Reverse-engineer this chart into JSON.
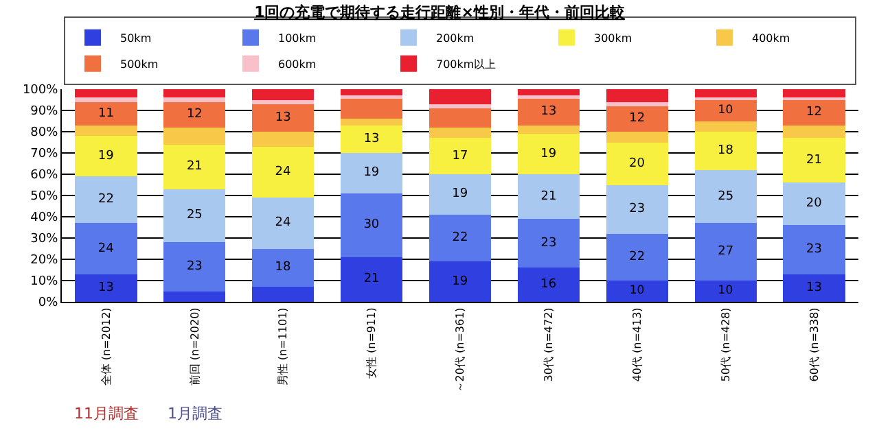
{
  "chart_data": {
    "type": "bar",
    "stacked": true,
    "title": "1回の充電で期待する走行距離×性別・年代・前回比較",
    "categories": [
      "全体 (n=2012)",
      "前回 (n=2020)",
      "男性 (n=1101)",
      "女性 (n=911)",
      "～20代 (n=361)",
      "30代 (n=472)",
      "40代 (n=413)",
      "50代 (n=428)",
      "60代 (n=338)"
    ],
    "series": [
      {
        "name": "50km",
        "color": "#3040e0",
        "values": [
          13,
          5,
          7,
          21,
          19,
          16,
          10,
          10,
          13
        ],
        "value_labels": [
          "13",
          null,
          null,
          "21",
          "19",
          "16",
          "10",
          "10",
          "13"
        ]
      },
      {
        "name": "100km",
        "color": "#5878ec",
        "values": [
          24,
          23,
          18,
          30,
          22,
          23,
          22,
          27,
          23
        ],
        "value_labels": [
          "24",
          "23",
          "18",
          "30",
          "22",
          "23",
          "22",
          "27",
          "23"
        ]
      },
      {
        "name": "200km",
        "color": "#a8c8f0",
        "values": [
          22,
          25,
          24,
          19,
          19,
          21,
          23,
          25,
          20
        ],
        "value_labels": [
          "22",
          "25",
          "24",
          "19",
          "19",
          "21",
          "23",
          "25",
          "20"
        ]
      },
      {
        "name": "300km",
        "color": "#f8f040",
        "values": [
          19,
          21,
          24,
          13,
          17,
          19,
          20,
          18,
          21
        ],
        "value_labels": [
          "19",
          "21",
          "24",
          "13",
          "17",
          "19",
          "20",
          "18",
          "21"
        ]
      },
      {
        "name": "400km",
        "color": "#f8c848",
        "values": [
          5,
          8,
          7,
          3,
          5,
          4,
          5,
          5,
          6
        ]
      },
      {
        "name": "500km",
        "color": "#f07040",
        "values": [
          11,
          12,
          13,
          10,
          9,
          13,
          12,
          10,
          12
        ],
        "value_labels": [
          "11",
          "12",
          "13",
          null,
          null,
          "13",
          "12",
          "10",
          "12"
        ]
      },
      {
        "name": "600km",
        "color": "#f8c0c8",
        "values": [
          2,
          2,
          2,
          1,
          2,
          1,
          2,
          1,
          1
        ]
      },
      {
        "name": "700km以上",
        "color": "#e82030",
        "values": [
          4,
          4,
          5,
          3,
          7,
          3,
          6,
          4,
          4
        ]
      }
    ],
    "ylim": [
      0,
      100
    ],
    "yticks": [
      {
        "value": 0,
        "label": "0%"
      },
      {
        "value": 10,
        "label": "10%"
      },
      {
        "value": 20,
        "label": "20%"
      },
      {
        "value": 30,
        "label": "30%"
      },
      {
        "value": 40,
        "label": "40%"
      },
      {
        "value": 50,
        "label": "50%"
      },
      {
        "value": 60,
        "label": "60%"
      },
      {
        "value": 70,
        "label": "70%"
      },
      {
        "value": 80,
        "label": "80%"
      },
      {
        "value": 90,
        "label": "90%"
      },
      {
        "value": 100,
        "label": "100%"
      }
    ],
    "grid": "y",
    "legend": "top",
    "annotations": [
      "11月調査",
      "1月調査"
    ]
  }
}
